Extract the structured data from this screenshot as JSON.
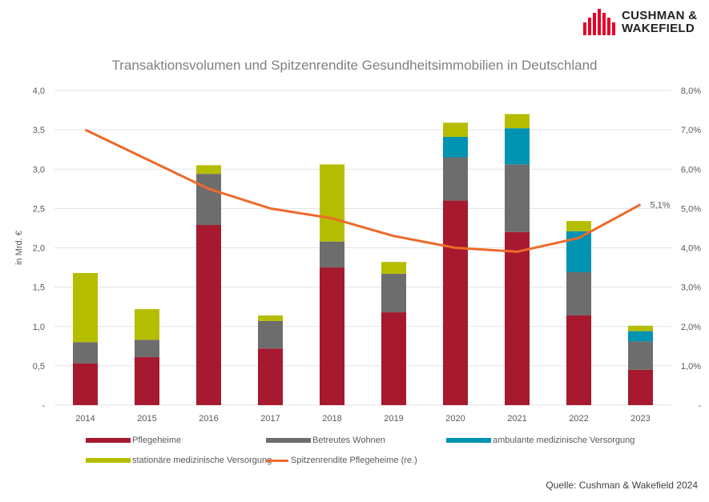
{
  "brand": {
    "line1": "CUSHMAN &",
    "line2": "WAKEFIELD",
    "color": "#E4002B"
  },
  "source": "Quelle: Cushman & Wakefield 2024",
  "chart_data": {
    "type": "bar",
    "stacked": true,
    "title": "Transaktionsvolumen und Spitzenrendite Gesundheitsimmobilien in Deutschland",
    "ylabel": "in Mrd. €",
    "ylim": [
      0,
      4
    ],
    "y2lim": [
      0,
      8
    ],
    "yticks": [
      "-",
      "0,5",
      "1,0",
      "1,5",
      "2,0",
      "2,5",
      "3,0",
      "3,5",
      "4,0"
    ],
    "y2ticks": [
      "-",
      "1,0%",
      "2,0%",
      "3,0%",
      "4,0%",
      "5,0%",
      "6,0%",
      "7,0%",
      "8,0%"
    ],
    "categories": [
      "2014",
      "2015",
      "2016",
      "2017",
      "2018",
      "2019",
      "2020",
      "2021",
      "2022",
      "2023"
    ],
    "series": [
      {
        "name": "Pflegeheime",
        "color": "#A6192E",
        "values": [
          0.53,
          0.61,
          2.29,
          0.72,
          1.75,
          1.18,
          2.6,
          2.2,
          1.14,
          0.45
        ]
      },
      {
        "name": "Betreutes Wohnen",
        "color": "#6D6D6D",
        "values": [
          0.27,
          0.22,
          0.65,
          0.35,
          0.33,
          0.49,
          0.55,
          0.86,
          0.55,
          0.36
        ]
      },
      {
        "name": "ambulante medizinische Versorgung",
        "color": "#0093B2",
        "values": [
          0,
          0,
          0,
          0,
          0,
          0,
          0.26,
          0.46,
          0.52,
          0.13
        ]
      },
      {
        "name": "stationäre medizinische Versorgung",
        "color": "#B5BD00",
        "values": [
          0.88,
          0.39,
          0.11,
          0.07,
          0.98,
          0.15,
          0.18,
          0.18,
          0.13,
          0.07
        ]
      }
    ],
    "line": {
      "name": "Spitzenrendite Pflegeheime (re.)",
      "color": "#ED6A2B",
      "axis": "right",
      "values": [
        7.0,
        6.25,
        5.5,
        5.0,
        4.75,
        4.3,
        4.0,
        3.9,
        4.25,
        5.1
      ]
    },
    "annotation": "5,1%"
  }
}
